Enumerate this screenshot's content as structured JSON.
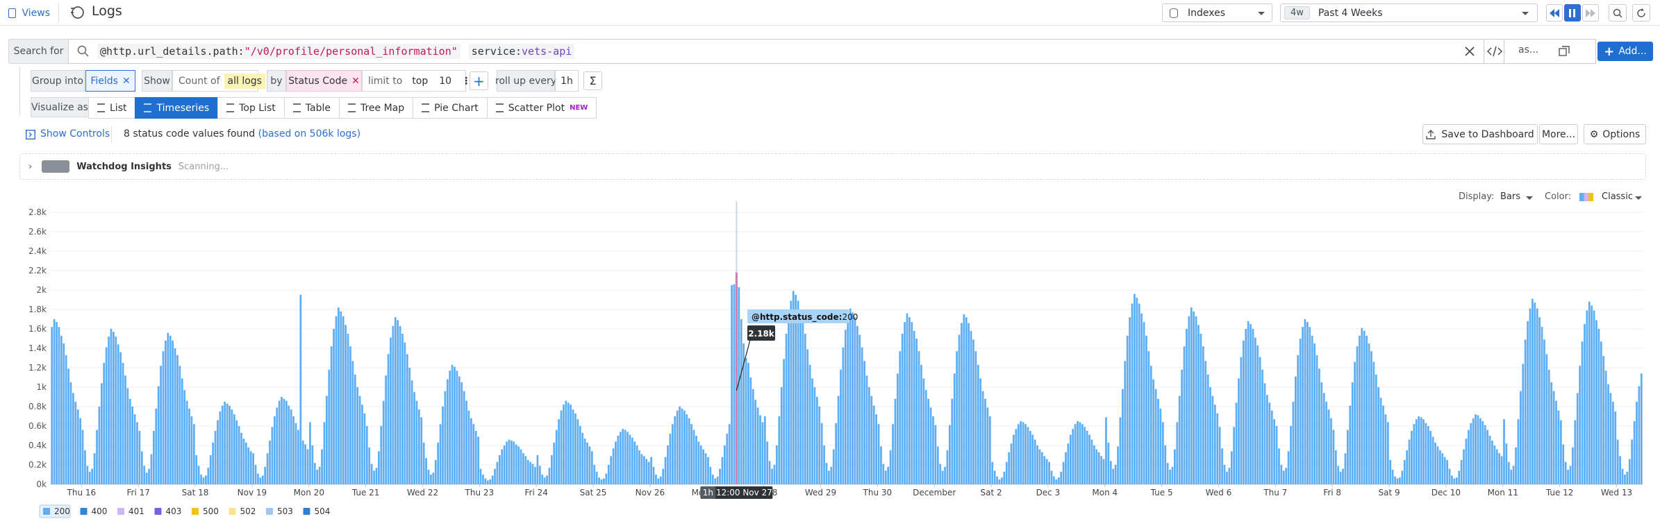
{
  "nav": {
    "views": "Views",
    "title": "Logs"
  },
  "top": {
    "indexes": "Indexes",
    "range_badge": "4w",
    "range": "Past 4 Weeks"
  },
  "search": {
    "label": "Search for",
    "query_key": "@http.url_details.path:",
    "query_value": "\"/v0/profile/personal_information\"",
    "query2_key": "service:",
    "query2_value": "vets-api",
    "as": "as...",
    "add": "Add..."
  },
  "group": {
    "group_into": "Group into",
    "fields": "Fields",
    "show": "Show",
    "count_of": "Count of",
    "all_logs": "all logs",
    "by": "by",
    "status_code": "Status Code",
    "limit_to": "limit to",
    "top": "top",
    "limit": "10",
    "roll_up": "roll up every",
    "rollup_value": "1h"
  },
  "visualize": {
    "label": "Visualize as",
    "options": [
      "List",
      "Timeseries",
      "Top List",
      "Table",
      "Tree Map",
      "Pie Chart",
      "Scatter Plot"
    ],
    "selected_index": 1,
    "new": "NEW"
  },
  "controls": {
    "show_controls": "Show Controls",
    "found": "8 status code values found",
    "based": "(based on 506k logs)",
    "save": "Save to Dashboard",
    "more": "More...",
    "options": "Options"
  },
  "watchdog": {
    "title": "Watchdog Insights",
    "status": "Scanning..."
  },
  "display": {
    "display_label": "Display:",
    "display": "Bars",
    "color_label": "Color:",
    "color": "Classic"
  },
  "chart_data": {
    "type": "bar",
    "xlim": [
      0,
      672
    ],
    "xticks": [
      {
        "value": 13,
        "label": "Thu 16"
      },
      {
        "value": 37,
        "label": "Fri 17"
      },
      {
        "value": 61,
        "label": "Sat 18"
      },
      {
        "value": 85,
        "label": "Nov 19"
      },
      {
        "value": 109,
        "label": "Mon 20"
      },
      {
        "value": 133,
        "label": "Tue 21"
      },
      {
        "value": 157,
        "label": "Wed 22"
      },
      {
        "value": 181,
        "label": "Thu 23"
      },
      {
        "value": 205,
        "label": "Fri 24"
      },
      {
        "value": 229,
        "label": "Sat 25"
      },
      {
        "value": 253,
        "label": "Nov 26"
      },
      {
        "value": 277,
        "label": "Mon 27"
      },
      {
        "value": 301,
        "label": "Tue 28"
      },
      {
        "value": 325,
        "label": "Wed 29"
      },
      {
        "value": 349,
        "label": "Thu 30"
      },
      {
        "value": 373,
        "label": "December"
      },
      {
        "value": 397,
        "label": "Sat 2"
      },
      {
        "value": 421,
        "label": "Dec 3"
      },
      {
        "value": 445,
        "label": "Mon 4"
      },
      {
        "value": 469,
        "label": "Tue 5"
      },
      {
        "value": 493,
        "label": "Wed 6"
      },
      {
        "value": 517,
        "label": "Thu 7"
      },
      {
        "value": 541,
        "label": "Fri 8"
      },
      {
        "value": 565,
        "label": "Sat 9"
      },
      {
        "value": 589,
        "label": "Dec 10"
      },
      {
        "value": 613,
        "label": "Mon 11"
      },
      {
        "value": 637,
        "label": "Tue 12"
      },
      {
        "value": 661,
        "label": "Wed 13"
      }
    ],
    "ylim": [
      0,
      2800
    ],
    "yticks": [
      {
        "value": 0,
        "label": "0k"
      },
      {
        "value": 200,
        "label": "0.2k"
      },
      {
        "value": 400,
        "label": "0.4k"
      },
      {
        "value": 600,
        "label": "0.6k"
      },
      {
        "value": 800,
        "label": "0.8k"
      },
      {
        "value": 1000,
        "label": "1k"
      },
      {
        "value": 1200,
        "label": "1.2k"
      },
      {
        "value": 1400,
        "label": "1.4k"
      },
      {
        "value": 1600,
        "label": "1.6k"
      },
      {
        "value": 1800,
        "label": "1.8k"
      },
      {
        "value": 2000,
        "label": "2k"
      },
      {
        "value": 2200,
        "label": "2.2k"
      },
      {
        "value": 2400,
        "label": "2.4k"
      },
      {
        "value": 2600,
        "label": "2.6k"
      },
      {
        "value": 2800,
        "label": "2.8k"
      }
    ],
    "grid": true,
    "legend": [
      {
        "name": "200",
        "color": "#5cadf4"
      },
      {
        "name": "400",
        "color": "#2d86d8"
      },
      {
        "name": "401",
        "color": "#cdb6f2"
      },
      {
        "name": "403",
        "color": "#7b5fd9"
      },
      {
        "name": "500",
        "color": "#f2c21b"
      },
      {
        "name": "502",
        "color": "#fce38a"
      },
      {
        "name": "503",
        "color": "#9fc6ef"
      },
      {
        "name": "504",
        "color": "#2f7fd4"
      }
    ],
    "values": [
      1620,
      1700,
      1670,
      1620,
      1530,
      1450,
      1330,
      1190,
      1050,
      940,
      850,
      770,
      680,
      560,
      350,
      190,
      130,
      160,
      320,
      560,
      800,
      1040,
      1250,
      1410,
      1520,
      1600,
      1570,
      1520,
      1440,
      1360,
      1250,
      1120,
      990,
      880,
      800,
      720,
      640,
      550,
      340,
      190,
      120,
      160,
      310,
      550,
      780,
      1010,
      1220,
      1370,
      1480,
      1560,
      1530,
      1480,
      1400,
      1330,
      1220,
      1090,
      970,
      860,
      780,
      700,
      620,
      300,
      190,
      100,
      70,
      90,
      170,
      300,
      430,
      550,
      660,
      750,
      810,
      850,
      830,
      810,
      770,
      720,
      660,
      600,
      530,
      470,
      430,
      380,
      340,
      320,
      200,
      110,
      70,
      90,
      180,
      320,
      450,
      590,
      700,
      790,
      860,
      900,
      880,
      860,
      810,
      770,
      700,
      630,
      560,
      1950,
      450,
      410,
      360,
      640,
      400,
      220,
      150,
      180,
      360,
      640,
      910,
      1180,
      1420,
      1600,
      1730,
      1820,
      1780,
      1730,
      1640,
      1550,
      1420,
      1270,
      1130,
      1000,
      910,
      820,
      730,
      600,
      380,
      210,
      140,
      170,
      340,
      600,
      860,
      1120,
      1340,
      1510,
      1630,
      1720,
      1690,
      1630,
      1550,
      1460,
      1340,
      1200,
      1070,
      950,
      860,
      770,
      690,
      430,
      270,
      150,
      100,
      120,
      250,
      430,
      620,
      800,
      960,
      1080,
      1170,
      1230,
      1210,
      1170,
      1110,
      1050,
      960,
      860,
      760,
      680,
      620,
      550,
      490,
      160,
      100,
      60,
      40,
      50,
      90,
      160,
      230,
      300,
      360,
      400,
      440,
      460,
      450,
      440,
      410,
      390,
      360,
      320,
      290,
      250,
      230,
      210,
      180,
      300,
      190,
      100,
      70,
      90,
      170,
      300,
      430,
      560,
      670,
      760,
      820,
      860,
      840,
      820,
      770,
      730,
      670,
      600,
      530,
      470,
      430,
      390,
      340,
      200,
      130,
      70,
      50,
      60,
      110,
      200,
      290,
      370,
      440,
      500,
      540,
      570,
      560,
      540,
      510,
      480,
      440,
      400,
      350,
      310,
      290,
      260,
      230,
      280,
      180,
      100,
      60,
      80,
      160,
      280,
      400,
      520,
      620,
      700,
      760,
      800,
      780,
      760,
      720,
      680,
      620,
      560,
      500,
      440,
      400,
      360,
      320,
      280,
      180,
      100,
      60,
      80,
      160,
      280,
      400,
      520,
      620,
      2050,
      2060,
      2180,
      2030,
      1700,
      1450,
      1300,
      1250,
      1100,
      980,
      870,
      790,
      710,
      640,
      700,
      440,
      240,
      160,
      200,
      400,
      700,
      1000,
      1290,
      1550,
      1750,
      1890,
      1990,
      1950,
      1890,
      1790,
      1690,
      1550,
      1390,
      1230,
      1090,
      1000,
      900,
      800,
      630,
      400,
      220,
      140,
      180,
      360,
      630,
      910,
      1180,
      1410,
      1590,
      1720,
      1810,
      1770,
      1720,
      1630,
      1540,
      1410,
      1270,
      1120,
      1000,
      910,
      810,
      720,
      620,
      390,
      210,
      140,
      180,
      350,
      620,
      880,
      1140,
      1370,
      1550,
      1670,
      1760,
      1720,
      1670,
      1580,
      1500,
      1370,
      1230,
      1090,
      970,
      880,
      790,
      700,
      610,
      390,
      210,
      140,
      180,
      350,
      610,
      880,
      1140,
      1370,
      1540,
      1660,
      1750,
      1720,
      1660,
      1580,
      1490,
      1370,
      1230,
      1090,
      960,
      880,
      790,
      700,
      230,
      140,
      80,
      50,
      70,
      130,
      230,
      330,
      420,
      510,
      570,
      620,
      650,
      640,
      620,
      590,
      550,
      510,
      460,
      400,
      360,
      330,
      290,
      260,
      230,
      140,
      80,
      50,
      70,
      130,
      230,
      330,
      420,
      510,
      570,
      620,
      650,
      640,
      620,
      590,
      550,
      510,
      460,
      400,
      360,
      330,
      290,
      260,
      690,
      430,
      240,
      160,
      200,
      390,
      690,
      980,
      1270,
      1530,
      1720,
      1860,
      1960,
      1920,
      1860,
      1760,
      1670,
      1530,
      1370,
      1220,
      1080,
      980,
      880,
      780,
      640,
      400,
      220,
      150,
      180,
      360,
      640,
      910,
      1180,
      1420,
      1600,
      1730,
      1820,
      1780,
      1730,
      1640,
      1550,
      1420,
      1270,
      1130,
      1000,
      910,
      820,
      730,
      590,
      370,
      200,
      130,
      170,
      340,
      590,
      840,
      1090,
      1310,
      1480,
      1600,
      1680,
      1650,
      1600,
      1510,
      1430,
      1310,
      1180,
      1040,
      920,
      840,
      760,
      670,
      600,
      370,
      200,
      140,
      170,
      340,
      600,
      850,
      1110,
      1330,
      1500,
      1620,
      1700,
      1670,
      1620,
      1530,
      1450,
      1330,
      1190,
      1050,
      940,
      850,
      770,
      680,
      560,
      350,
      190,
      130,
      160,
      320,
      560,
      810,
      1050,
      1260,
      1420,
      1530,
      1610,
      1580,
      1530,
      1450,
      1370,
      1260,
      1130,
      1000,
      890,
      810,
      720,
      640,
      250,
      150,
      80,
      60,
      70,
      140,
      250,
      350,
      460,
      550,
      620,
      670,
      700,
      690,
      670,
      630,
      600,
      550,
      490,
      430,
      390,
      350,
      320,
      280,
      250,
      160,
      90,
      60,
      70,
      140,
      250,
      360,
      470,
      560,
      630,
      680,
      720,
      710,
      680,
      650,
      610,
      560,
      500,
      450,
      400,
      360,
      320,
      290,
      670,
      420,
      230,
      150,
      190,
      380,
      670,
      960,
      1240,
      1490,
      1680,
      1810,
      1910,
      1870,
      1810,
      1720,
      1620,
      1490,
      1340,
      1180,
      1050,
      960,
      860,
      760,
      660,
      410,
      230,
      150,
      190,
      380,
      660,
      940,
      1220,
      1470,
      1650,
      1790,
      1880,
      1840,
      1790,
      1690,
      1600,
      1470,
      1320,
      1170,
      1030,
      940,
      850,
      750,
      460,
      290,
      160,
      100,
      130,
      260,
      460,
      650,
      850,
      1010,
      1140
    ],
    "hover": {
      "index": 289,
      "color": "#e5127d",
      "tooltip_key": "@http.status_code:",
      "value_label": "2.18k",
      "time": "12:00 Nov 27"
    }
  }
}
